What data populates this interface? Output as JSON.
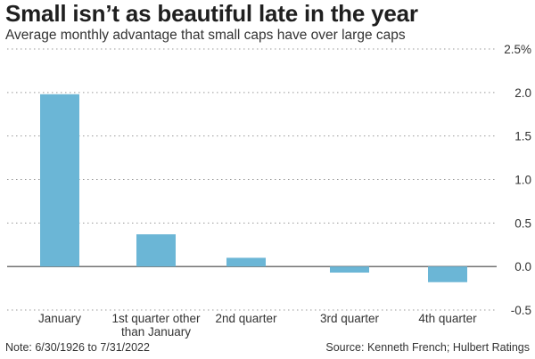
{
  "header": {
    "title": "Small isn’t as beautiful late in the year",
    "subtitle": "Average monthly advantage that small caps have over large caps"
  },
  "footer": {
    "note": "Note: 6/30/1926 to 7/31/2022",
    "source": "Source: Kenneth French; Hulbert Ratings"
  },
  "colors": {
    "bar": "#6bb6d6",
    "gridline": "#9a9a9a",
    "zero_line": "#444444",
    "text": "#333333"
  },
  "chart_data": {
    "type": "bar",
    "title": "Small isn’t as beautiful late in the year",
    "subtitle": "Average monthly advantage that small caps have over large caps",
    "xlabel": "",
    "ylabel": "",
    "categories": [
      [
        "January"
      ],
      [
        "1st quarter other",
        "than January"
      ],
      [
        "2nd quarter"
      ],
      [
        "3rd quarter"
      ],
      [
        "4th quarter"
      ]
    ],
    "values": [
      1.98,
      0.37,
      0.1,
      -0.07,
      -0.18
    ],
    "ylim": [
      -0.5,
      2.5
    ],
    "yticks": [
      {
        "value": 2.5,
        "label": "2.5%"
      },
      {
        "value": 2.0,
        "label": "2.0"
      },
      {
        "value": 1.5,
        "label": "1.5"
      },
      {
        "value": 1.0,
        "label": "1.0"
      },
      {
        "value": 0.5,
        "label": "0.5"
      },
      {
        "value": 0.0,
        "label": "0.0"
      },
      {
        "value": -0.5,
        "label": "-0.5"
      }
    ],
    "grid": true,
    "y_axis_position": "right"
  }
}
